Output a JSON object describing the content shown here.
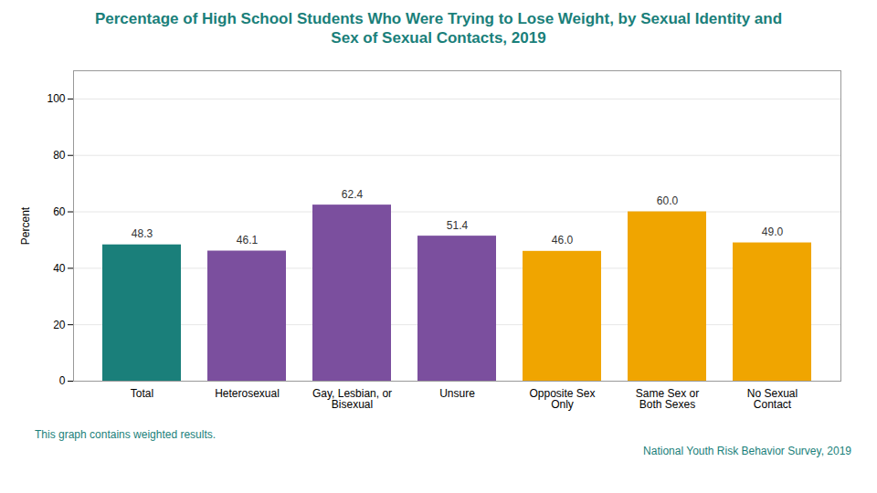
{
  "chart_data": {
    "type": "bar",
    "title": "Percentage of High School Students Who Were Trying to Lose Weight, by Sexual Identity and\nSex of Sexual Contacts, 2019",
    "ylabel": "Percent",
    "categories": [
      "Total",
      "Heterosexual",
      "Gay, Lesbian, or\nBisexual",
      "Unsure",
      "Opposite Sex\nOnly",
      "Same Sex or\nBoth Sexes",
      "No Sexual\nContact"
    ],
    "values": [
      48.3,
      46.1,
      62.4,
      51.4,
      46.0,
      60.0,
      49.0
    ],
    "value_labels": [
      "48.3",
      "46.1",
      "62.4",
      "51.4",
      "46.0",
      "60.0",
      "49.0"
    ],
    "colors": [
      "#1a7f7a",
      "#7b4f9e",
      "#7b4f9e",
      "#7b4f9e",
      "#f0a500",
      "#f0a500",
      "#f0a500"
    ],
    "ylim": [
      0,
      110
    ],
    "yticks": [
      0,
      20,
      40,
      60,
      80,
      100
    ],
    "grid": true,
    "data_labels": true,
    "footnote": "This graph contains weighted results.",
    "source": "National Youth Risk Behavior Survey, 2019"
  }
}
